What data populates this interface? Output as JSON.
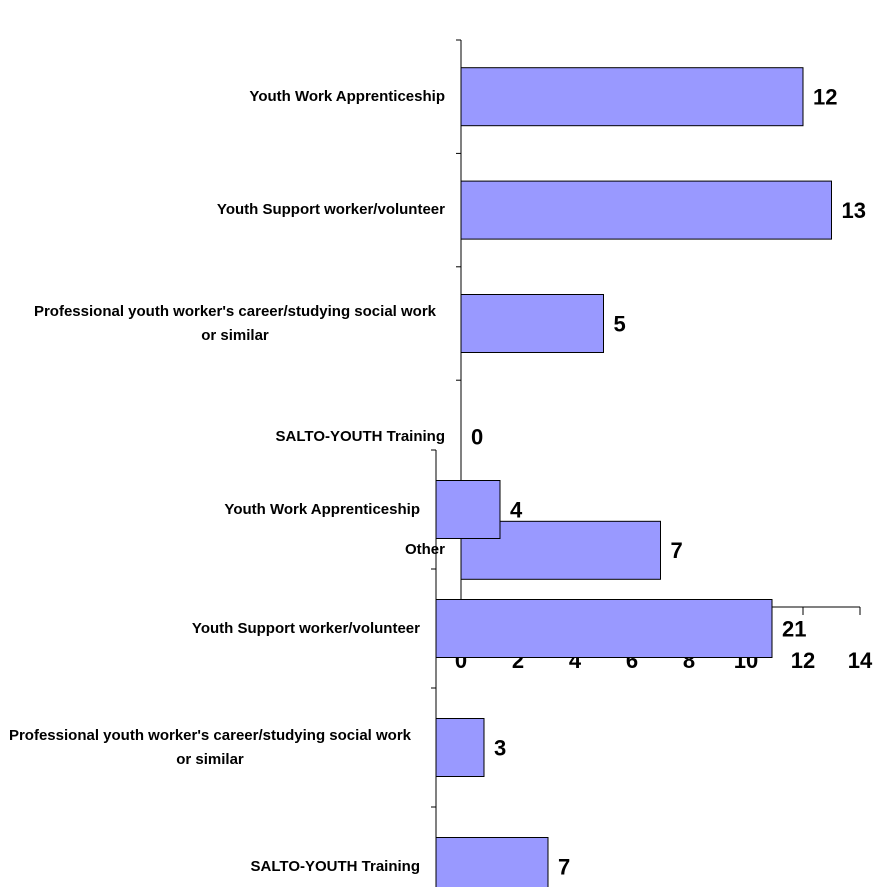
{
  "chart_data": [
    {
      "type": "bar",
      "orientation": "horizontal",
      "categories": [
        "Youth Work Apprenticeship",
        "Youth Support worker/volunteer",
        "Professional youth worker's career/studying social work or similar",
        "SALTO-YOUTH Training",
        "Other"
      ],
      "values": [
        12,
        13,
        5,
        0,
        7
      ],
      "color": "#9999ff",
      "xlim": [
        0,
        14
      ],
      "xticks": [
        0,
        2,
        4,
        6,
        8,
        10,
        12,
        14
      ]
    },
    {
      "type": "bar",
      "orientation": "horizontal",
      "categories": [
        "Youth Work Apprenticeship",
        "Youth Support worker/volunteer",
        "Professional youth worker's career/studying social work or similar",
        "SALTO-YOUTH Training"
      ],
      "values": [
        4,
        21,
        3,
        7
      ],
      "color": "#9999ff",
      "xlim": [
        0,
        21
      ]
    }
  ]
}
